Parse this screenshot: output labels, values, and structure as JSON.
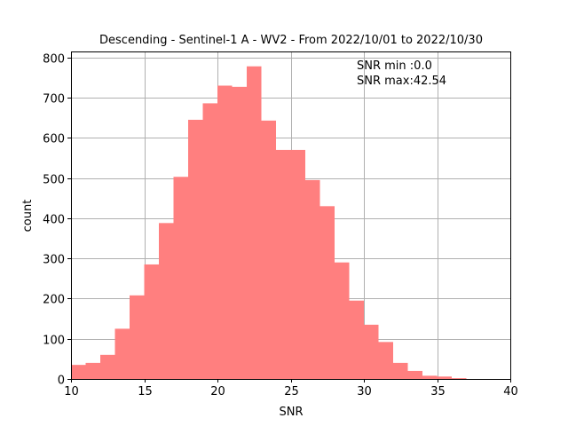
{
  "chart_data": {
    "type": "bar",
    "title": "Descending - Sentinel-1 A - WV2 - From 2022/10/01 to 2022/10/30",
    "xlabel": "SNR",
    "ylabel": "count",
    "xlim": [
      10,
      40
    ],
    "ylim": [
      0,
      815
    ],
    "xticks": [
      10,
      15,
      20,
      25,
      30,
      35,
      40
    ],
    "yticks": [
      0,
      100,
      200,
      300,
      400,
      500,
      600,
      700,
      800
    ],
    "grid": true,
    "color": "#ff7f7f",
    "bin_width": 1,
    "bin_starts": [
      10,
      11,
      12,
      13,
      14,
      15,
      16,
      17,
      18,
      19,
      20,
      21,
      22,
      23,
      24,
      25,
      26,
      27,
      28,
      29,
      30,
      31,
      32,
      33,
      34,
      35,
      36,
      37,
      38,
      39
    ],
    "values": [
      35,
      40,
      60,
      125,
      208,
      285,
      388,
      503,
      645,
      686,
      730,
      727,
      778,
      643,
      570,
      570,
      495,
      430,
      290,
      195,
      135,
      92,
      40,
      20,
      8,
      6,
      2,
      0,
      0,
      0
    ],
    "annotations": [
      "SNR min :0.0",
      "SNR max:42.54"
    ]
  }
}
